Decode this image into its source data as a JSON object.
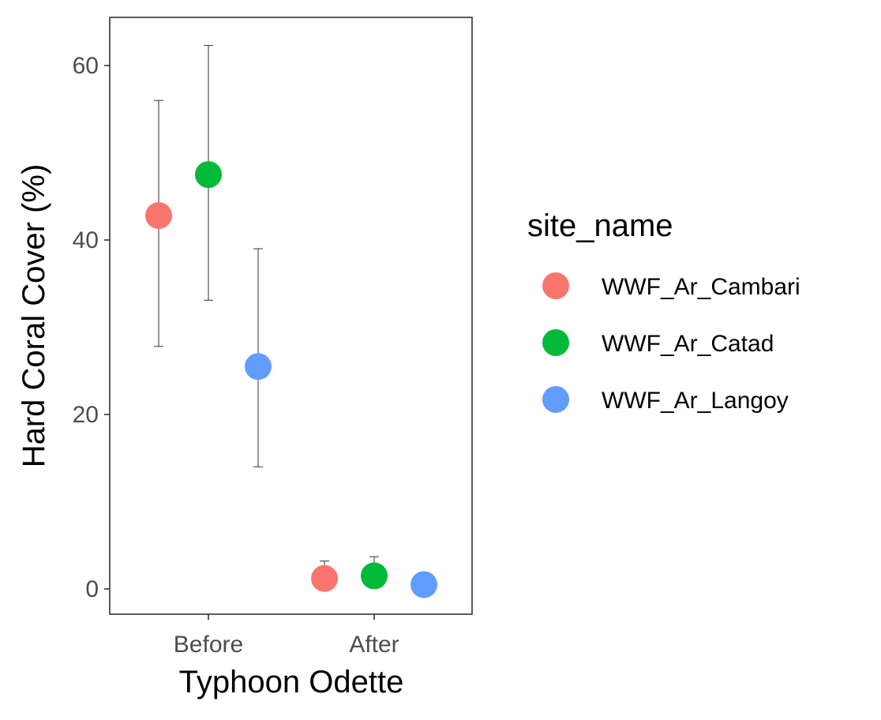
{
  "chart_data": {
    "type": "scatter",
    "xlabel": "Typhoon Odette",
    "ylabel": "Hard Coral Cover (%)",
    "categories": [
      "Before",
      "After"
    ],
    "y_ticks": [
      0,
      20,
      40,
      60
    ],
    "ylim": [
      -3,
      65.5
    ],
    "grid": false,
    "legend": {
      "title": "site_name",
      "position": "right"
    },
    "series": [
      {
        "name": "WWF_Ar_Cambari",
        "color": "#F8766D",
        "values": [
          42.8,
          1.2
        ],
        "lower": [
          27.8,
          0.1
        ],
        "upper": [
          56.0,
          3.2
        ]
      },
      {
        "name": "WWF_Ar_Catad",
        "color": "#00BA38",
        "values": [
          47.5,
          1.5
        ],
        "lower": [
          33.1,
          0.2
        ],
        "upper": [
          62.3,
          3.7
        ]
      },
      {
        "name": "WWF_Ar_Langoy",
        "color": "#619CFF",
        "values": [
          25.5,
          0.5
        ],
        "lower": [
          14.0,
          0.0
        ],
        "upper": [
          39.0,
          1.9
        ]
      }
    ]
  }
}
